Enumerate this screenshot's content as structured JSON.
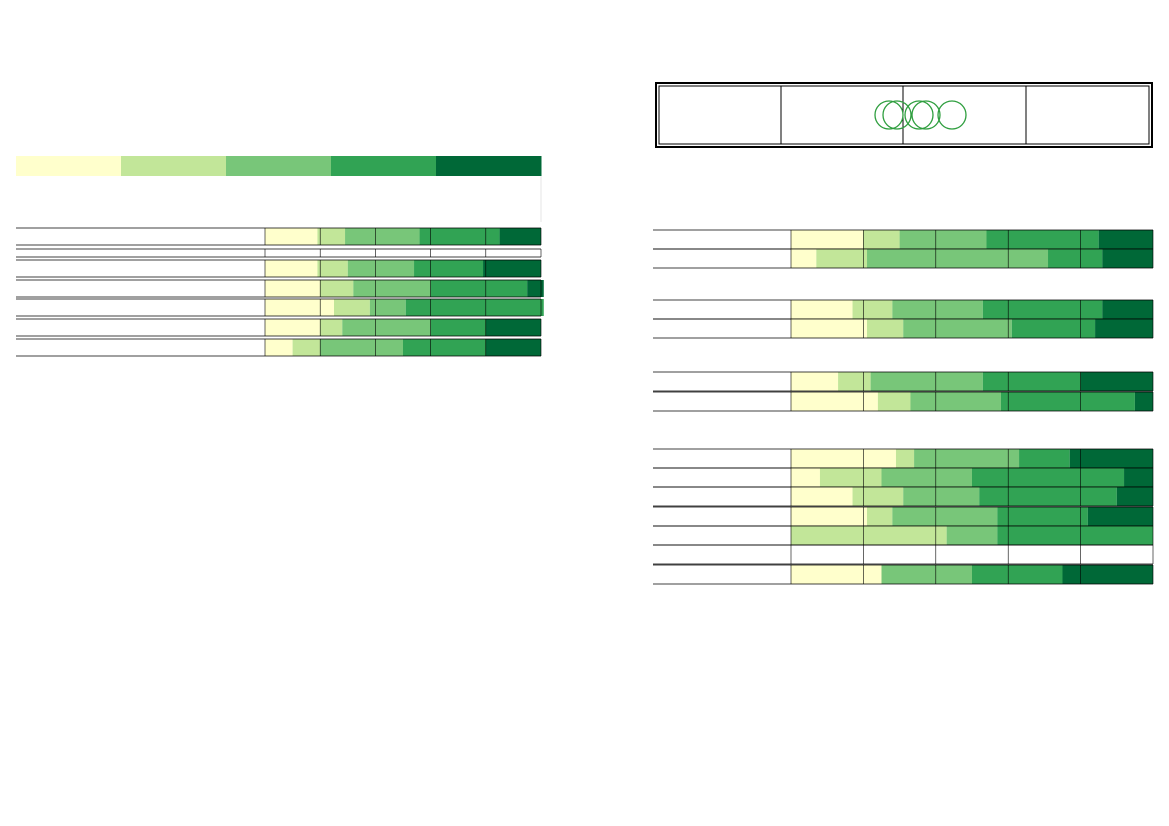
{
  "palette": [
    "#ffffcc",
    "#c2e699",
    "#78c679",
    "#31a354",
    "#006837"
  ],
  "legend": {
    "labels": [
      "",
      "",
      "",
      "",
      ""
    ]
  },
  "header_box": {
    "cells": [
      "",
      "",
      "",
      ""
    ],
    "icon": "olympic-rings-icon",
    "icon_color": "#2e9e3e"
  },
  "chart_data": [
    {
      "type": "bar",
      "orientation": "horizontal",
      "stacked": true,
      "percent": true,
      "xlim": [
        0,
        100
      ],
      "grid": true,
      "rows": [
        {
          "label": "",
          "values": [
            19,
            10,
            27,
            29,
            15
          ]
        },
        {
          "label": "",
          "values": [
            0,
            0,
            0,
            0,
            0
          ]
        },
        {
          "label": "",
          "values": [
            19,
            11,
            24,
            25,
            21
          ]
        },
        {
          "label": "",
          "values": [
            20,
            12,
            28,
            35,
            6
          ]
        },
        {
          "label": "",
          "values": [
            25,
            13,
            13,
            50,
            0
          ]
        },
        {
          "label": "",
          "values": [
            20,
            8,
            32,
            20,
            20
          ]
        },
        {
          "label": "",
          "values": [
            10,
            10,
            30,
            30,
            20
          ]
        }
      ]
    },
    {
      "type": "bar",
      "orientation": "horizontal",
      "stacked": true,
      "percent": true,
      "xlim": [
        0,
        100
      ],
      "grid": true,
      "groups": [
        {
          "title": "",
          "rows": [
            {
              "label": "",
              "values": [
                20,
                10,
                24,
                31,
                15
              ]
            },
            {
              "label": "",
              "values": [
                7,
                14,
                50,
                15,
                14
              ]
            }
          ]
        },
        {
          "title": "",
          "rows": [
            {
              "label": "",
              "values": [
                17,
                11,
                25,
                33,
                14
              ]
            },
            {
              "label": "",
              "values": [
                21,
                10,
                30,
                23,
                16
              ]
            }
          ]
        },
        {
          "title": "",
          "rows": [
            {
              "label": "",
              "values": [
                13,
                9,
                31,
                27,
                20
              ]
            },
            {
              "label": "",
              "values": [
                24,
                9,
                25,
                37,
                5
              ]
            }
          ]
        },
        {
          "title": "",
          "rows": [
            {
              "label": "",
              "values": [
                29,
                5,
                29,
                14,
                23
              ]
            },
            {
              "label": "",
              "values": [
                8,
                17,
                25,
                42,
                8
              ]
            },
            {
              "label": "",
              "values": [
                17,
                14,
                21,
                38,
                10
              ]
            },
            {
              "label": "",
              "values": [
                21,
                7,
                29,
                25,
                18
              ]
            },
            {
              "label": "",
              "values": [
                0,
                43,
                14,
                43,
                0
              ]
            },
            {
              "label": "",
              "values": [
                0,
                0,
                0,
                0,
                0
              ]
            },
            {
              "label": "",
              "values": [
                25,
                0,
                25,
                25,
                25
              ]
            }
          ]
        }
      ]
    }
  ]
}
